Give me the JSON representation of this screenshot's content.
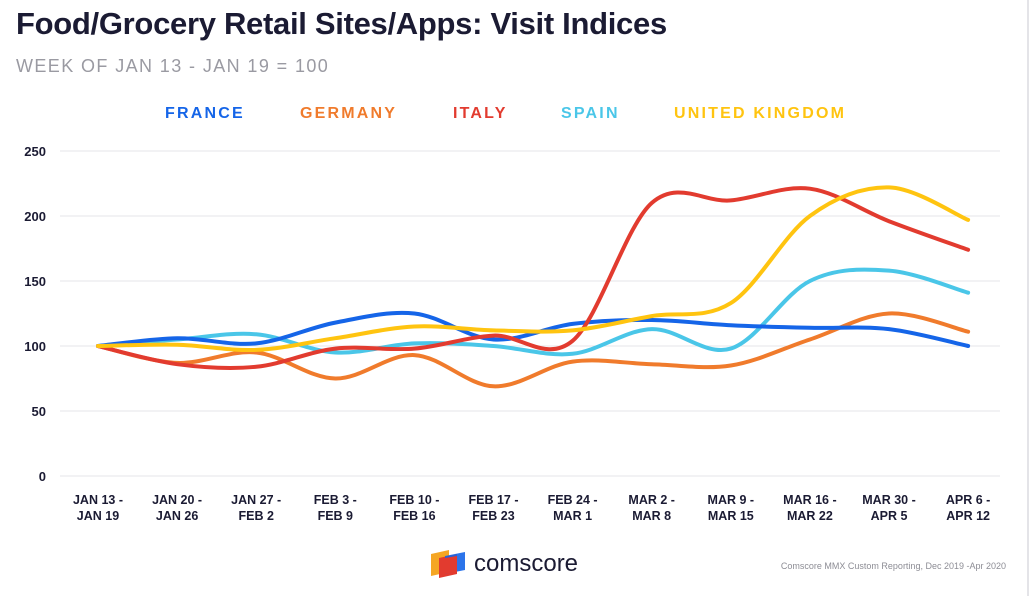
{
  "title": "Food/Grocery Retail Sites/Apps: Visit Indices",
  "subtitle": "WEEK OF JAN 13 - JAN 19 = 100",
  "brand": {
    "logo_text": "comscore",
    "logo_icon": "comscore-logo-icon"
  },
  "source_note": "Comscore MMX Custom Reporting, Dec 2019 -Apr 2020",
  "chart_data": {
    "type": "line",
    "title": "Food/Grocery Retail Sites/Apps: Visit Indices",
    "subtitle": "WEEK OF JAN 13 - JAN 19 = 100",
    "xlabel": "",
    "ylabel": "",
    "ylim": [
      0,
      250
    ],
    "yticks": [
      0,
      50,
      100,
      150,
      200,
      250
    ],
    "grid": true,
    "legend_position": "top",
    "categories": [
      [
        "JAN 13 -",
        "JAN 19"
      ],
      [
        "JAN 20 -",
        "JAN 26"
      ],
      [
        "JAN 27 -",
        "FEB 2"
      ],
      [
        "FEB 3 -",
        "FEB 9"
      ],
      [
        "FEB 10 -",
        "FEB 16"
      ],
      [
        "FEB 17 -",
        "FEB 23"
      ],
      [
        "FEB 24 -",
        "MAR 1"
      ],
      [
        "MAR 2 -",
        "MAR 8"
      ],
      [
        "MAR 9 -",
        "MAR 15"
      ],
      [
        "MAR 16 -",
        "MAR 22"
      ],
      [
        "MAR 30 -",
        "APR 5"
      ],
      [
        "APR 6 -",
        "APR 12"
      ]
    ],
    "series": [
      {
        "name": "FRANCE",
        "color": "#1565e8",
        "values": [
          100,
          106,
          102,
          118,
          125,
          105,
          117,
          120,
          116,
          114,
          113,
          100
        ]
      },
      {
        "name": "GERMANY",
        "color": "#f07b2c",
        "values": [
          100,
          87,
          95,
          75,
          93,
          69,
          88,
          86,
          85,
          105,
          125,
          111
        ]
      },
      {
        "name": "ITALY",
        "color": "#e23b2f",
        "values": [
          100,
          86,
          84,
          98,
          98,
          108,
          104,
          210,
          212,
          221,
          196,
          174
        ]
      },
      {
        "name": "SPAIN",
        "color": "#4ac6e8",
        "values": [
          100,
          105,
          109,
          95,
          102,
          100,
          94,
          113,
          98,
          150,
          158,
          141
        ]
      },
      {
        "name": "UNITED KINGDOM",
        "color": "#ffc410",
        "values": [
          100,
          101,
          97,
          106,
          115,
          112,
          112,
          123,
          133,
          200,
          222,
          197
        ]
      }
    ]
  }
}
